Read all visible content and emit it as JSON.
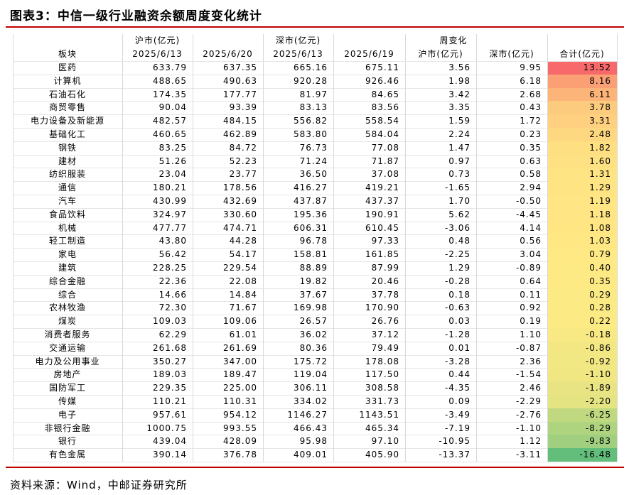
{
  "title": "图表3：中信一级行业融资余额周度变化统计",
  "table": {
    "header_top": [
      "沪市(亿元)",
      "深市(亿元)",
      "周变化"
    ],
    "header": [
      "板块",
      "2025/6/13",
      "2025/6/20",
      "2025/6/13",
      "2025/6/19",
      "沪市(亿元)",
      "深市(亿元)",
      "合计(亿元)"
    ],
    "rows": [
      [
        "医药",
        "633.79",
        "637.35",
        "665.16",
        "675.11",
        "3.56",
        "9.95",
        "13.52"
      ],
      [
        "计算机",
        "488.65",
        "490.63",
        "920.28",
        "926.46",
        "1.98",
        "6.18",
        "8.16"
      ],
      [
        "石油石化",
        "174.35",
        "177.77",
        "81.97",
        "84.65",
        "3.42",
        "2.68",
        "6.11"
      ],
      [
        "商贸零售",
        "90.04",
        "93.39",
        "83.13",
        "83.56",
        "3.35",
        "0.43",
        "3.78"
      ],
      [
        "电力设备及新能源",
        "482.57",
        "484.15",
        "556.82",
        "558.54",
        "1.59",
        "1.72",
        "3.31"
      ],
      [
        "基础化工",
        "460.65",
        "462.89",
        "583.80",
        "584.04",
        "2.24",
        "0.23",
        "2.48"
      ],
      [
        "钢铁",
        "83.25",
        "84.72",
        "76.73",
        "77.08",
        "1.47",
        "0.35",
        "1.82"
      ],
      [
        "建材",
        "51.26",
        "52.23",
        "71.24",
        "71.87",
        "0.97",
        "0.63",
        "1.60"
      ],
      [
        "纺织服装",
        "23.04",
        "23.77",
        "36.50",
        "37.08",
        "0.73",
        "0.58",
        "1.31"
      ],
      [
        "通信",
        "180.21",
        "178.56",
        "416.27",
        "419.21",
        "-1.65",
        "2.94",
        "1.29"
      ],
      [
        "汽车",
        "430.99",
        "432.69",
        "437.87",
        "437.37",
        "1.70",
        "-0.50",
        "1.19"
      ],
      [
        "食品饮料",
        "324.97",
        "330.60",
        "195.36",
        "190.91",
        "5.62",
        "-4.45",
        "1.18"
      ],
      [
        "机械",
        "477.77",
        "474.71",
        "606.31",
        "610.45",
        "-3.06",
        "4.14",
        "1.08"
      ],
      [
        "轻工制造",
        "43.80",
        "44.28",
        "96.78",
        "97.33",
        "0.48",
        "0.56",
        "1.03"
      ],
      [
        "家电",
        "56.42",
        "54.17",
        "158.81",
        "161.85",
        "-2.25",
        "3.04",
        "0.79"
      ],
      [
        "建筑",
        "228.25",
        "229.54",
        "88.89",
        "87.99",
        "1.29",
        "-0.89",
        "0.40"
      ],
      [
        "综合金融",
        "22.36",
        "22.08",
        "19.82",
        "20.46",
        "-0.28",
        "0.64",
        "0.35"
      ],
      [
        "综合",
        "14.66",
        "14.84",
        "37.67",
        "37.78",
        "0.18",
        "0.11",
        "0.29"
      ],
      [
        "农林牧渔",
        "72.30",
        "71.67",
        "169.98",
        "170.90",
        "-0.63",
        "0.92",
        "0.28"
      ],
      [
        "煤炭",
        "109.03",
        "109.06",
        "26.57",
        "26.76",
        "0.03",
        "0.19",
        "0.22"
      ],
      [
        "消费者服务",
        "62.29",
        "61.01",
        "36.02",
        "37.12",
        "-1.28",
        "1.10",
        "-0.18"
      ],
      [
        "交通运输",
        "261.68",
        "261.69",
        "80.36",
        "79.49",
        "0.01",
        "-0.87",
        "-0.86"
      ],
      [
        "电力及公用事业",
        "350.27",
        "347.00",
        "175.72",
        "178.08",
        "-3.28",
        "2.36",
        "-0.92"
      ],
      [
        "房地产",
        "189.03",
        "189.47",
        "119.04",
        "117.50",
        "0.44",
        "-1.54",
        "-1.10"
      ],
      [
        "国防军工",
        "229.35",
        "225.00",
        "306.11",
        "308.58",
        "-4.35",
        "2.46",
        "-1.89"
      ],
      [
        "传媒",
        "110.21",
        "110.31",
        "334.02",
        "331.73",
        "0.09",
        "-2.29",
        "-2.20"
      ],
      [
        "电子",
        "957.61",
        "954.12",
        "1146.27",
        "1143.51",
        "-3.49",
        "-2.76",
        "-6.25"
      ],
      [
        "非银行金融",
        "1000.75",
        "993.55",
        "466.43",
        "465.34",
        "-7.19",
        "-1.10",
        "-8.29"
      ],
      [
        "银行",
        "439.04",
        "428.09",
        "95.98",
        "97.10",
        "-10.95",
        "1.12",
        "-9.83"
      ],
      [
        "有色金属",
        "390.14",
        "376.78",
        "409.01",
        "405.90",
        "-13.37",
        "-3.11",
        "-16.48"
      ]
    ]
  },
  "source": "资料来源：Wind，中邮证券研究所"
}
